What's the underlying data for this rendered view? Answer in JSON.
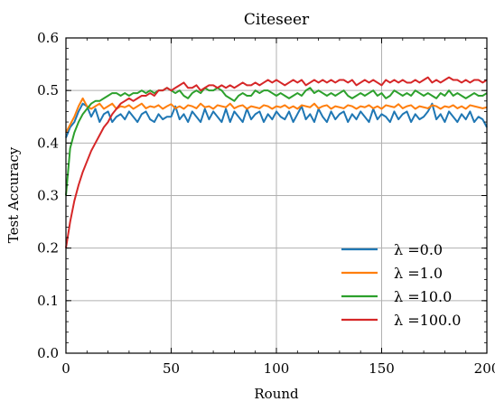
{
  "chart_data": {
    "type": "line",
    "title": "Citeseer",
    "xlabel": "Round",
    "ylabel": "Test Accuracy",
    "xlim": [
      0,
      200
    ],
    "ylim": [
      0.0,
      0.6
    ],
    "xticks": [
      "0",
      "50",
      "100",
      "150",
      "200"
    ],
    "yticks": [
      "0.0",
      "0.1",
      "0.2",
      "0.3",
      "0.4",
      "0.5",
      "0.6"
    ],
    "grid": true,
    "legend_position": "bottom-right",
    "series": [
      {
        "name": "λ =0.0",
        "color": "#1f77b4",
        "x": [
          0,
          2,
          4,
          6,
          8,
          10,
          12,
          14,
          16,
          18,
          20,
          22,
          24,
          26,
          28,
          30,
          32,
          34,
          36,
          38,
          40,
          42,
          44,
          46,
          48,
          50,
          52,
          54,
          56,
          58,
          60,
          62,
          64,
          66,
          68,
          70,
          72,
          74,
          76,
          78,
          80,
          82,
          84,
          86,
          88,
          90,
          92,
          94,
          96,
          98,
          100,
          102,
          104,
          106,
          108,
          110,
          112,
          114,
          116,
          118,
          120,
          122,
          124,
          126,
          128,
          130,
          132,
          134,
          136,
          138,
          140,
          142,
          144,
          146,
          148,
          150,
          152,
          154,
          156,
          158,
          160,
          162,
          164,
          166,
          168,
          170,
          172,
          174,
          176,
          178,
          180,
          182,
          184,
          186,
          188,
          190,
          192,
          194,
          196,
          198,
          200
        ],
        "values": [
          0.41,
          0.43,
          0.44,
          0.46,
          0.475,
          0.47,
          0.45,
          0.465,
          0.44,
          0.455,
          0.46,
          0.44,
          0.45,
          0.455,
          0.445,
          0.46,
          0.45,
          0.44,
          0.455,
          0.46,
          0.445,
          0.44,
          0.455,
          0.445,
          0.45,
          0.45,
          0.47,
          0.445,
          0.455,
          0.44,
          0.46,
          0.45,
          0.44,
          0.465,
          0.445,
          0.46,
          0.45,
          0.44,
          0.465,
          0.44,
          0.46,
          0.45,
          0.44,
          0.465,
          0.445,
          0.455,
          0.46,
          0.44,
          0.455,
          0.445,
          0.46,
          0.45,
          0.445,
          0.46,
          0.44,
          0.455,
          0.47,
          0.445,
          0.455,
          0.44,
          0.465,
          0.45,
          0.44,
          0.46,
          0.445,
          0.455,
          0.46,
          0.44,
          0.455,
          0.445,
          0.46,
          0.45,
          0.44,
          0.465,
          0.445,
          0.455,
          0.45,
          0.44,
          0.46,
          0.445,
          0.455,
          0.46,
          0.44,
          0.455,
          0.445,
          0.45,
          0.46,
          0.475,
          0.445,
          0.455,
          0.44,
          0.46,
          0.45,
          0.44,
          0.455,
          0.445,
          0.46,
          0.44,
          0.45,
          0.445,
          0.43
        ]
      },
      {
        "name": "λ =1.0",
        "color": "#ff7f0e",
        "x": [
          0,
          2,
          4,
          6,
          8,
          10,
          12,
          14,
          16,
          18,
          20,
          22,
          24,
          26,
          28,
          30,
          32,
          34,
          36,
          38,
          40,
          42,
          44,
          46,
          48,
          50,
          52,
          54,
          56,
          58,
          60,
          62,
          64,
          66,
          68,
          70,
          72,
          74,
          76,
          78,
          80,
          82,
          84,
          86,
          88,
          90,
          92,
          94,
          96,
          98,
          100,
          102,
          104,
          106,
          108,
          110,
          112,
          114,
          116,
          118,
          120,
          122,
          124,
          126,
          128,
          130,
          132,
          134,
          136,
          138,
          140,
          142,
          144,
          146,
          148,
          150,
          152,
          154,
          156,
          158,
          160,
          162,
          164,
          166,
          168,
          170,
          172,
          174,
          176,
          178,
          180,
          182,
          184,
          186,
          188,
          190,
          192,
          194,
          196,
          198,
          200
        ],
        "values": [
          0.42,
          0.435,
          0.45,
          0.47,
          0.485,
          0.47,
          0.465,
          0.47,
          0.475,
          0.465,
          0.47,
          0.475,
          0.465,
          0.47,
          0.468,
          0.472,
          0.465,
          0.47,
          0.475,
          0.466,
          0.47,
          0.468,
          0.472,
          0.465,
          0.47,
          0.474,
          0.466,
          0.47,
          0.465,
          0.472,
          0.47,
          0.466,
          0.475,
          0.468,
          0.47,
          0.465,
          0.472,
          0.47,
          0.468,
          0.475,
          0.466,
          0.47,
          0.472,
          0.465,
          0.47,
          0.468,
          0.466,
          0.472,
          0.47,
          0.465,
          0.47,
          0.468,
          0.472,
          0.466,
          0.47,
          0.465,
          0.472,
          0.47,
          0.468,
          0.475,
          0.466,
          0.47,
          0.472,
          0.465,
          0.47,
          0.468,
          0.466,
          0.472,
          0.47,
          0.465,
          0.47,
          0.468,
          0.472,
          0.466,
          0.47,
          0.465,
          0.472,
          0.47,
          0.468,
          0.474,
          0.466,
          0.47,
          0.472,
          0.465,
          0.47,
          0.468,
          0.466,
          0.472,
          0.47,
          0.465,
          0.47,
          0.468,
          0.472,
          0.466,
          0.47,
          0.465,
          0.472,
          0.47,
          0.468,
          0.466,
          0.468
        ]
      },
      {
        "name": "λ =10.0",
        "color": "#2ca02c",
        "x": [
          0,
          2,
          4,
          6,
          8,
          10,
          12,
          14,
          16,
          18,
          20,
          22,
          24,
          26,
          28,
          30,
          32,
          34,
          36,
          38,
          40,
          42,
          44,
          46,
          48,
          50,
          52,
          54,
          56,
          58,
          60,
          62,
          64,
          66,
          68,
          70,
          72,
          74,
          76,
          78,
          80,
          82,
          84,
          86,
          88,
          90,
          92,
          94,
          96,
          98,
          100,
          102,
          104,
          106,
          108,
          110,
          112,
          114,
          116,
          118,
          120,
          122,
          124,
          126,
          128,
          130,
          132,
          134,
          136,
          138,
          140,
          142,
          144,
          146,
          148,
          150,
          152,
          154,
          156,
          158,
          160,
          162,
          164,
          166,
          168,
          170,
          172,
          174,
          176,
          178,
          180,
          182,
          184,
          186,
          188,
          190,
          192,
          194,
          196,
          198,
          200
        ],
        "values": [
          0.3,
          0.39,
          0.42,
          0.44,
          0.455,
          0.465,
          0.475,
          0.48,
          0.48,
          0.485,
          0.49,
          0.495,
          0.495,
          0.49,
          0.495,
          0.49,
          0.495,
          0.495,
          0.5,
          0.495,
          0.5,
          0.495,
          0.5,
          0.5,
          0.505,
          0.5,
          0.495,
          0.5,
          0.49,
          0.485,
          0.495,
          0.5,
          0.495,
          0.505,
          0.5,
          0.5,
          0.505,
          0.5,
          0.49,
          0.485,
          0.48,
          0.49,
          0.495,
          0.49,
          0.49,
          0.5,
          0.495,
          0.5,
          0.5,
          0.495,
          0.49,
          0.495,
          0.49,
          0.485,
          0.49,
          0.495,
          0.49,
          0.5,
          0.505,
          0.495,
          0.5,
          0.495,
          0.49,
          0.495,
          0.49,
          0.495,
          0.5,
          0.49,
          0.485,
          0.49,
          0.495,
          0.49,
          0.495,
          0.5,
          0.49,
          0.495,
          0.485,
          0.49,
          0.5,
          0.495,
          0.49,
          0.495,
          0.49,
          0.5,
          0.495,
          0.49,
          0.495,
          0.49,
          0.485,
          0.495,
          0.49,
          0.5,
          0.49,
          0.495,
          0.49,
          0.485,
          0.49,
          0.495,
          0.49,
          0.49,
          0.495
        ]
      },
      {
        "name": "λ =100.0",
        "color": "#d62728",
        "x": [
          0,
          2,
          4,
          6,
          8,
          10,
          12,
          14,
          16,
          18,
          20,
          22,
          24,
          26,
          28,
          30,
          32,
          34,
          36,
          38,
          40,
          42,
          44,
          46,
          48,
          50,
          52,
          54,
          56,
          58,
          60,
          62,
          64,
          66,
          68,
          70,
          72,
          74,
          76,
          78,
          80,
          82,
          84,
          86,
          88,
          90,
          92,
          94,
          96,
          98,
          100,
          102,
          104,
          106,
          108,
          110,
          112,
          114,
          116,
          118,
          120,
          122,
          124,
          126,
          128,
          130,
          132,
          134,
          136,
          138,
          140,
          142,
          144,
          146,
          148,
          150,
          152,
          154,
          156,
          158,
          160,
          162,
          164,
          166,
          168,
          170,
          172,
          174,
          176,
          178,
          180,
          182,
          184,
          186,
          188,
          190,
          192,
          194,
          196,
          198,
          200
        ],
        "values": [
          0.2,
          0.25,
          0.29,
          0.32,
          0.345,
          0.365,
          0.385,
          0.4,
          0.415,
          0.43,
          0.44,
          0.455,
          0.465,
          0.475,
          0.48,
          0.485,
          0.48,
          0.485,
          0.49,
          0.49,
          0.495,
          0.49,
          0.5,
          0.5,
          0.505,
          0.5,
          0.505,
          0.51,
          0.515,
          0.505,
          0.505,
          0.51,
          0.5,
          0.505,
          0.51,
          0.51,
          0.505,
          0.51,
          0.505,
          0.51,
          0.505,
          0.51,
          0.515,
          0.51,
          0.51,
          0.515,
          0.51,
          0.515,
          0.52,
          0.515,
          0.52,
          0.515,
          0.51,
          0.515,
          0.52,
          0.515,
          0.52,
          0.51,
          0.515,
          0.52,
          0.515,
          0.52,
          0.515,
          0.52,
          0.515,
          0.52,
          0.52,
          0.515,
          0.52,
          0.51,
          0.515,
          0.52,
          0.515,
          0.52,
          0.515,
          0.51,
          0.52,
          0.515,
          0.52,
          0.515,
          0.52,
          0.515,
          0.515,
          0.52,
          0.515,
          0.52,
          0.525,
          0.515,
          0.52,
          0.515,
          0.52,
          0.525,
          0.52,
          0.52,
          0.515,
          0.52,
          0.515,
          0.52,
          0.52,
          0.515,
          0.52
        ]
      }
    ]
  }
}
